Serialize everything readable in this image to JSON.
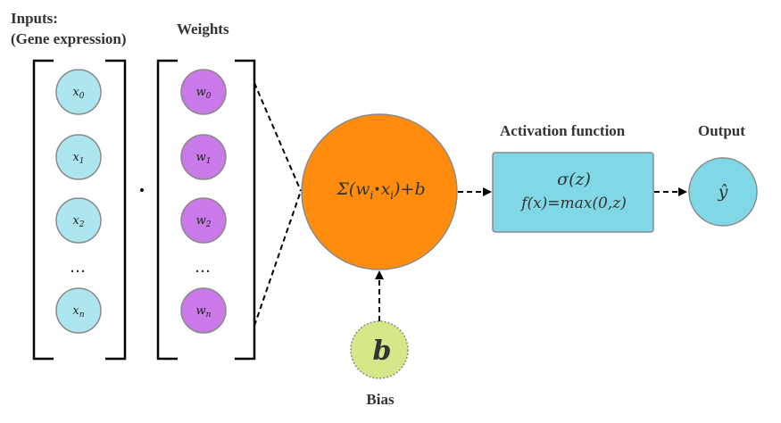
{
  "labels": {
    "inputs_line1": "Inputs:",
    "inputs_line2": "(Gene expression)",
    "weights": "Weights",
    "activation": "Activation function",
    "output": "Output",
    "bias": "Bias"
  },
  "inputs": [
    {
      "base": "x",
      "sub": "0"
    },
    {
      "base": "x",
      "sub": "1"
    },
    {
      "base": "x",
      "sub": "2"
    },
    {
      "base": "x",
      "sub": "n"
    }
  ],
  "weights": [
    {
      "base": "w",
      "sub": "0"
    },
    {
      "base": "w",
      "sub": "1"
    },
    {
      "base": "w",
      "sub": "2"
    },
    {
      "base": "w",
      "sub": "n"
    }
  ],
  "ellipsis": "…",
  "dot_operator": "•",
  "neuron": {
    "sigma": "Σ(w",
    "sub_i": "i",
    "bullet": "•",
    "x": "x",
    "plus_b": ")+b"
  },
  "activation": {
    "line1": "σ(z)",
    "line2": "f(x)=max(0,z)"
  },
  "output_symbol": "ŷ",
  "bias_symbol": "b",
  "colors": {
    "input_node": "#aee6ef",
    "weight_node": "#c979e8",
    "neuron": "#ff8c0d",
    "activation_box": "#80d8e6",
    "output_node": "#80d8e6",
    "bias_node": "#d4e88a",
    "node_border": "#8a8a8a"
  }
}
